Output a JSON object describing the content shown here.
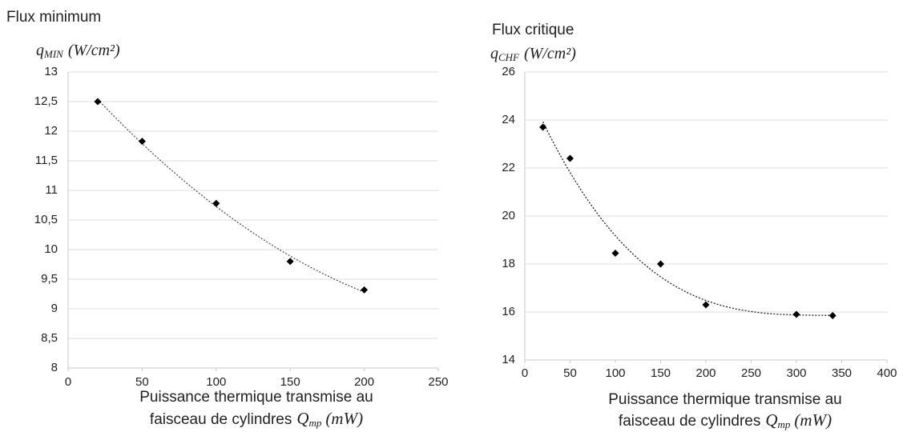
{
  "chart_data": [
    {
      "type": "scatter",
      "title": "Flux minimum",
      "y_label": {
        "symbol": "q",
        "subscript": "MIN",
        "unit": "(W/cm²)"
      },
      "x_label": {
        "lines": [
          "Puissance thermique transmise au",
          "faisceau de cylindres"
        ],
        "symbol": "Q",
        "subscript": "mp",
        "unit": "(mW)"
      },
      "x": [
        20,
        50,
        100,
        150,
        200
      ],
      "series": [
        {
          "color": "#000000",
          "values": [
            12.5,
            11.83,
            10.78,
            9.8,
            9.32
          ]
        }
      ],
      "trendline": {
        "type": "polynomial",
        "order": 2,
        "color": "#555555"
      },
      "xlim": [
        0,
        250
      ],
      "xticks": [
        0,
        50,
        100,
        150,
        200,
        250
      ],
      "ylim": [
        8,
        13
      ],
      "yticks": [
        8,
        {
          "value": 8.5,
          "label": "8,5"
        },
        9,
        {
          "value": 9.5,
          "label": "9,5"
        },
        10,
        {
          "value": 10.5,
          "label": "10,5"
        },
        11,
        {
          "value": 11.5,
          "label": "11,5"
        },
        12,
        {
          "value": 12.5,
          "label": "12,5"
        },
        13
      ],
      "grid": true
    },
    {
      "type": "scatter",
      "title": "Flux critique",
      "y_label": {
        "symbol": "q",
        "subscript": "CHF",
        "unit": "(W/cm²)"
      },
      "x_label": {
        "lines": [
          "Puissance thermique transmise au",
          "faisceau de cylindres"
        ],
        "symbol": "Q",
        "subscript": "mp",
        "unit": "(mW)"
      },
      "x": [
        20,
        50,
        100,
        150,
        200,
        300,
        340
      ],
      "series": [
        {
          "color": "#000000",
          "values": [
            23.7,
            22.4,
            18.45,
            18.0,
            16.3,
            15.9,
            15.85
          ]
        }
      ],
      "trendline": {
        "type": "polynomial",
        "order": 3,
        "color": "#222222"
      },
      "xlim": [
        0,
        400
      ],
      "xticks": [
        0,
        50,
        100,
        150,
        200,
        250,
        300,
        350,
        400
      ],
      "ylim": [
        14,
        26
      ],
      "yticks": [
        14,
        16,
        18,
        20,
        22,
        24,
        26
      ],
      "grid": true
    }
  ]
}
